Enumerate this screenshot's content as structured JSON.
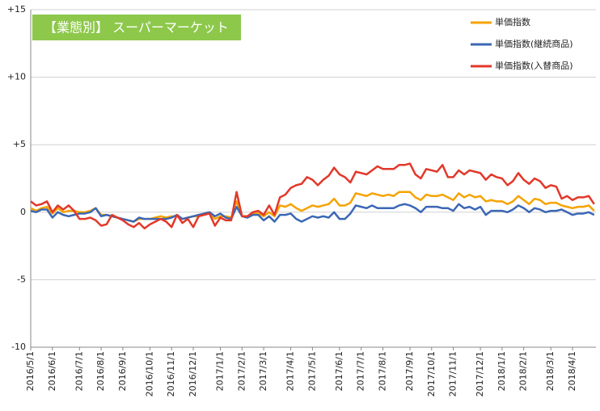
{
  "chart_data": {
    "type": "line",
    "title": "【業態別】 スーパーマーケット",
    "categories": [
      "2016/5/1",
      null,
      null,
      null,
      "2016/6/1",
      null,
      null,
      null,
      null,
      "2016/7/1",
      null,
      null,
      null,
      "2016/8/1",
      null,
      null,
      null,
      "2016/9/1",
      null,
      null,
      null,
      null,
      "2016/10/1",
      null,
      null,
      null,
      "2016/11/1",
      null,
      null,
      null,
      "2016/12/1",
      null,
      null,
      null,
      null,
      "2017/1/1",
      null,
      null,
      null,
      "2017/2/1",
      null,
      null,
      null,
      "2017/3/1",
      null,
      null,
      null,
      null,
      "2017/4/1",
      null,
      null,
      null,
      "2017/5/1",
      null,
      null,
      null,
      null,
      "2017/6/1",
      null,
      null,
      null,
      "2017/7/1",
      null,
      null,
      null,
      "2017/8/1",
      null,
      null,
      null,
      null,
      "2017/9/1",
      null,
      null,
      null,
      "2017/10/1",
      null,
      null,
      null,
      "2017/11/1",
      null,
      null,
      null,
      null,
      "2017/12/1",
      null,
      null,
      null,
      "2018/1/1",
      null,
      null,
      null,
      "2018/2/1",
      null,
      null,
      null,
      null,
      "2018/3/1",
      null,
      null,
      null,
      "2018/4/1",
      null,
      null,
      null,
      null
    ],
    "series": [
      {
        "name": "単価指数",
        "color": "#f5a300",
        "values": [
          0.3,
          0.1,
          0.3,
          0.4,
          -0.1,
          0.3,
          0.0,
          0.1,
          0.1,
          0.0,
          0.0,
          0.1,
          0.3,
          -0.2,
          -0.2,
          -0.3,
          -0.4,
          -0.5,
          -0.6,
          -0.7,
          -0.5,
          -0.5,
          -0.5,
          -0.4,
          -0.3,
          -0.4,
          -0.3,
          -0.3,
          -0.5,
          -0.4,
          -0.3,
          -0.3,
          -0.1,
          0.0,
          -0.5,
          -0.3,
          -0.3,
          -0.4,
          0.8,
          -0.3,
          -0.3,
          -0.1,
          -0.1,
          -0.3,
          0.0,
          -0.3,
          0.5,
          0.4,
          0.6,
          0.3,
          0.1,
          0.3,
          0.5,
          0.4,
          0.5,
          0.6,
          1.0,
          0.5,
          0.5,
          0.7,
          1.4,
          1.3,
          1.2,
          1.4,
          1.3,
          1.2,
          1.3,
          1.2,
          1.5,
          1.5,
          1.5,
          1.1,
          0.9,
          1.3,
          1.2,
          1.2,
          1.3,
          1.1,
          0.9,
          1.4,
          1.1,
          1.3,
          1.1,
          1.2,
          0.8,
          0.9,
          0.8,
          0.8,
          0.6,
          0.8,
          1.2,
          0.9,
          0.6,
          1.0,
          0.9,
          0.6,
          0.7,
          0.7,
          0.5,
          0.4,
          0.3,
          0.4,
          0.4,
          0.5,
          0.1
        ]
      },
      {
        "name": "単価指数(継続商品)",
        "color": "#3b67b5",
        "values": [
          0.1,
          0.0,
          0.2,
          0.2,
          -0.4,
          0.0,
          -0.2,
          -0.3,
          -0.2,
          -0.1,
          -0.1,
          0.0,
          0.3,
          -0.3,
          -0.2,
          -0.3,
          -0.4,
          -0.5,
          -0.6,
          -0.7,
          -0.4,
          -0.5,
          -0.5,
          -0.5,
          -0.5,
          -0.5,
          -0.4,
          -0.2,
          -0.5,
          -0.4,
          -0.3,
          -0.2,
          -0.1,
          0.0,
          -0.3,
          -0.1,
          -0.4,
          -0.5,
          0.4,
          -0.3,
          -0.4,
          -0.2,
          -0.2,
          -0.6,
          -0.3,
          -0.7,
          -0.2,
          -0.2,
          -0.1,
          -0.5,
          -0.7,
          -0.5,
          -0.3,
          -0.4,
          -0.3,
          -0.4,
          0.0,
          -0.5,
          -0.5,
          -0.1,
          0.5,
          0.4,
          0.3,
          0.5,
          0.3,
          0.3,
          0.3,
          0.3,
          0.5,
          0.6,
          0.5,
          0.3,
          0.0,
          0.4,
          0.4,
          0.4,
          0.3,
          0.3,
          0.1,
          0.6,
          0.3,
          0.4,
          0.2,
          0.4,
          -0.2,
          0.1,
          0.1,
          0.1,
          0.0,
          0.2,
          0.5,
          0.3,
          0.0,
          0.3,
          0.2,
          0.0,
          0.1,
          0.1,
          0.2,
          0.0,
          -0.2,
          -0.1,
          -0.1,
          0.0,
          -0.2
        ]
      },
      {
        "name": "単価指数(入替商品)",
        "color": "#e2382a",
        "values": [
          0.8,
          0.5,
          0.6,
          0.8,
          0.0,
          0.5,
          0.2,
          0.5,
          0.1,
          -0.5,
          -0.5,
          -0.4,
          -0.6,
          -1.0,
          -0.9,
          -0.2,
          -0.4,
          -0.6,
          -0.9,
          -1.1,
          -0.8,
          -1.2,
          -0.9,
          -0.7,
          -0.5,
          -0.7,
          -1.1,
          -0.2,
          -0.8,
          -0.5,
          -1.1,
          -0.3,
          -0.2,
          -0.1,
          -1.0,
          -0.4,
          -0.6,
          -0.6,
          1.5,
          -0.3,
          -0.3,
          0.0,
          0.1,
          -0.2,
          0.5,
          -0.2,
          1.1,
          1.3,
          1.8,
          2.0,
          2.1,
          2.6,
          2.4,
          2.0,
          2.4,
          2.7,
          3.3,
          2.8,
          2.6,
          2.2,
          3.0,
          2.9,
          2.8,
          3.1,
          3.4,
          3.2,
          3.2,
          3.2,
          3.5,
          3.5,
          3.6,
          2.8,
          2.5,
          3.2,
          3.1,
          3.0,
          3.5,
          2.6,
          2.6,
          3.1,
          2.8,
          3.1,
          3.0,
          2.9,
          2.4,
          2.8,
          2.6,
          2.5,
          2.0,
          2.3,
          2.9,
          2.4,
          2.1,
          2.5,
          2.3,
          1.8,
          2.0,
          1.9,
          1.0,
          1.2,
          0.9,
          1.1,
          1.1,
          1.2,
          0.6
        ]
      }
    ],
    "ylim": [
      -10,
      15
    ],
    "yticks": [
      -10,
      -5,
      0,
      {
        "value": 5,
        "label": "+5"
      },
      {
        "value": 10,
        "label": "+10"
      },
      {
        "value": 15,
        "label": "+15"
      }
    ],
    "grid": true
  }
}
